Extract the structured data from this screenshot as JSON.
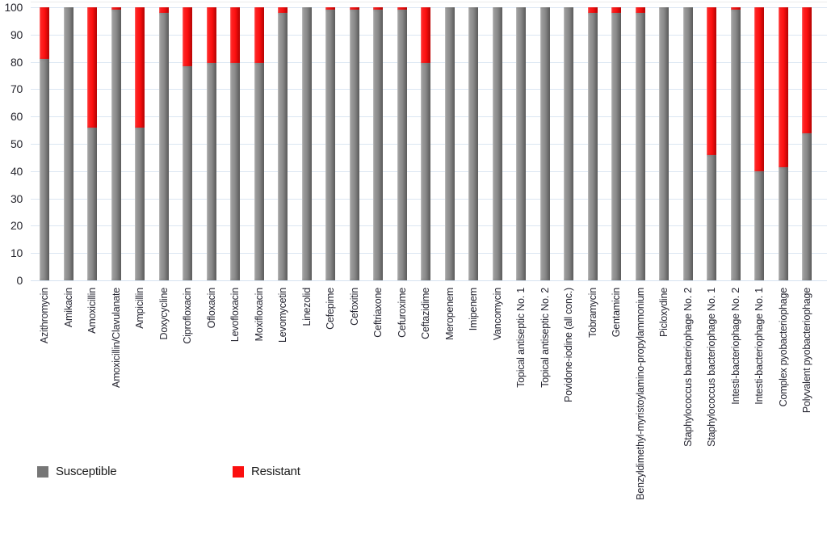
{
  "figure": {
    "background": "#ffffff",
    "gridline_color": "#dbe6f2",
    "axis_text_color": "#26262e"
  },
  "chart_data": {
    "type": "bar",
    "stacked": true,
    "orientation": "vertical",
    "title": "",
    "xlabel": "",
    "ylabel": "",
    "ylim": [
      0,
      100
    ],
    "ytick_step": 10,
    "yticks": [
      "0",
      "10",
      "20",
      "30",
      "40",
      "50",
      "60",
      "70",
      "80",
      "90",
      "100"
    ],
    "grid": "horizontal",
    "legend_position": "bottom-left",
    "categories": [
      "Azithromycin",
      "Amikacin",
      "Amoxicillin",
      "Amoxicillin/Clavulanate",
      "Ampicillin",
      "Doxycycline",
      "Ciprofloxacin",
      "Ofloxacin",
      "Levofloxacin",
      "Moxifloxacin",
      "Levomycetin",
      "Linezolid",
      "Cefepime",
      "Cefoxitin",
      "Ceftriaxone",
      "Cefuroxime",
      "Ceftazidime",
      "Meropenem",
      "Imipenem",
      "Vancomycin",
      "Topical antiseptic No. 1",
      "Topical antiseptic No. 2",
      "Povidone-iodine (all conc.)",
      "Tobramycin",
      "Gentamicin",
      "Benzyldimethyl-myristoylamino-propylammonium",
      "Picloxydine",
      "Staphylococcus bacteriophage No. 2",
      "Staphylococcus bacteriophage No. 1",
      "Intesti-bacteriophage No. 2",
      "Intesti-bacteriophage No. 1",
      "Complex pyobacteriophage",
      "Polyvalent pyobacteriophage"
    ],
    "series": [
      {
        "name": "Susceptible",
        "color": "#8a8a8a",
        "values": [
          81,
          100,
          56,
          99,
          56,
          98,
          78.5,
          79.5,
          79.5,
          79.5,
          98,
          100,
          99,
          99,
          99,
          99,
          79.5,
          100,
          100,
          100,
          100,
          100,
          100,
          98,
          98,
          98,
          100,
          100,
          46,
          99,
          40,
          41.5,
          54
        ]
      },
      {
        "name": "Resistant",
        "color": "#fb0f0f",
        "values": [
          19,
          0,
          44,
          1,
          44,
          2,
          21.5,
          20.5,
          20.5,
          20.5,
          2,
          0,
          1,
          1,
          1,
          1,
          20.5,
          0,
          0,
          0,
          0,
          0,
          0,
          2,
          2,
          2,
          0,
          0,
          54,
          1,
          60,
          58.5,
          46
        ]
      }
    ]
  },
  "legend": {
    "items": [
      {
        "label": "Susceptible",
        "color": "#767676"
      },
      {
        "label": "Resistant",
        "color": "#fb0f0f"
      }
    ]
  }
}
